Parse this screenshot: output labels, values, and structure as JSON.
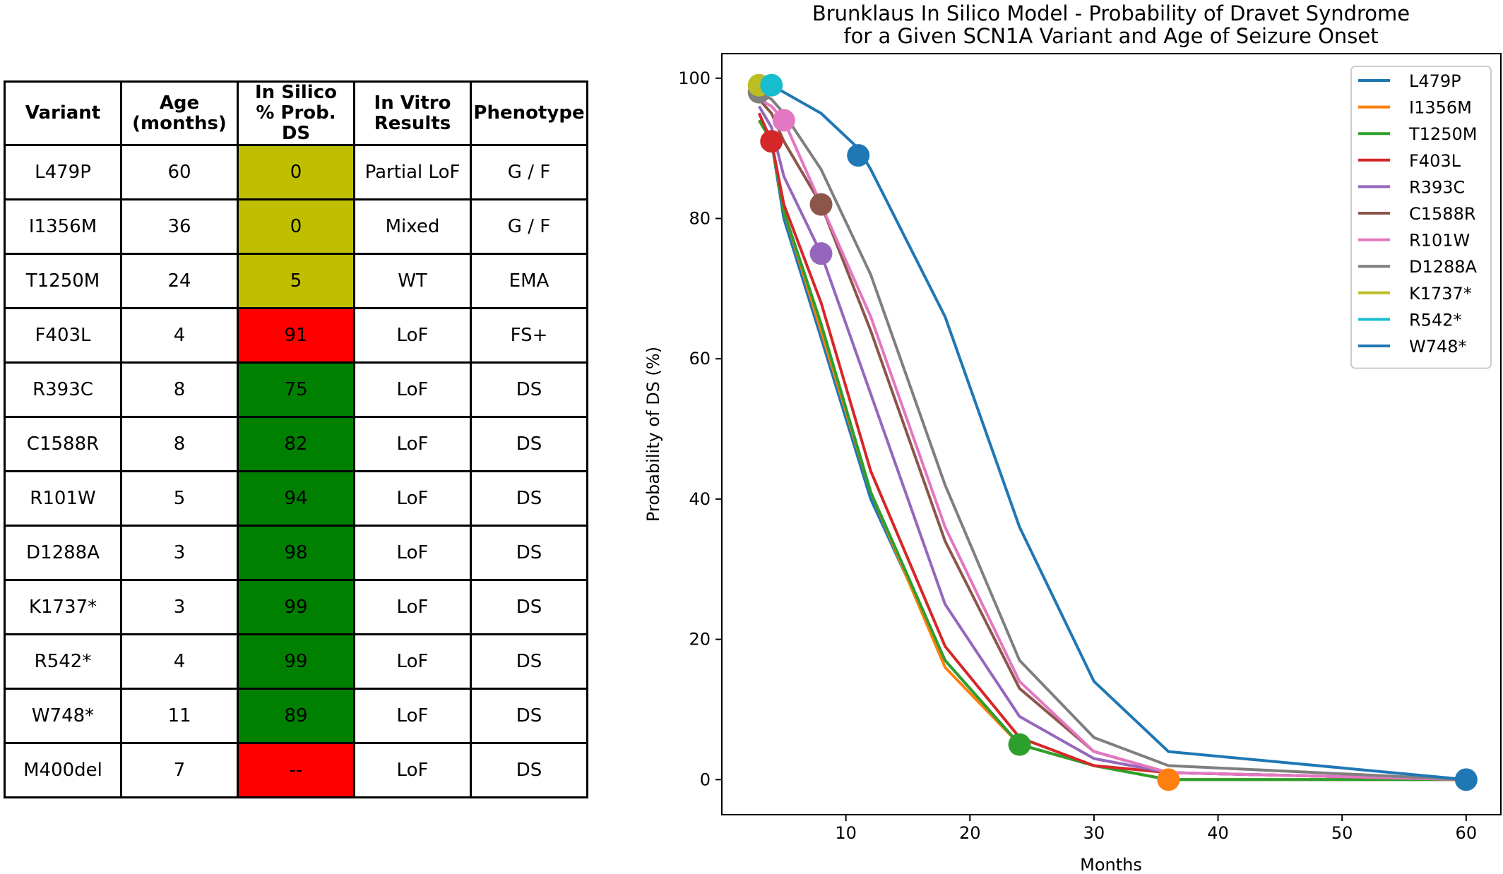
{
  "table": {
    "headers": [
      "Variant",
      "Age\n(months)",
      "In Silico\n% Prob. DS",
      "In Vitro\nResults",
      "Phenotype"
    ],
    "rows": [
      {
        "variant": "L479P",
        "age": "60",
        "prob": "0",
        "invitro": "Partial LoF",
        "phenotype": "G / F",
        "color": "#bfbf00"
      },
      {
        "variant": "I1356M",
        "age": "36",
        "prob": "0",
        "invitro": "Mixed",
        "phenotype": "G / F",
        "color": "#bfbf00"
      },
      {
        "variant": "T1250M",
        "age": "24",
        "prob": "5",
        "invitro": "WT",
        "phenotype": "EMA",
        "color": "#bfbf00"
      },
      {
        "variant": "F403L",
        "age": "4",
        "prob": "91",
        "invitro": "LoF",
        "phenotype": "FS+",
        "color": "#ff0000"
      },
      {
        "variant": "R393C",
        "age": "8",
        "prob": "75",
        "invitro": "LoF",
        "phenotype": "DS",
        "color": "#008000"
      },
      {
        "variant": "C1588R",
        "age": "8",
        "prob": "82",
        "invitro": "LoF",
        "phenotype": "DS",
        "color": "#008000"
      },
      {
        "variant": "R101W",
        "age": "5",
        "prob": "94",
        "invitro": "LoF",
        "phenotype": "DS",
        "color": "#008000"
      },
      {
        "variant": "D1288A",
        "age": "3",
        "prob": "98",
        "invitro": "LoF",
        "phenotype": "DS",
        "color": "#008000"
      },
      {
        "variant": "K1737*",
        "age": "3",
        "prob": "99",
        "invitro": "LoF",
        "phenotype": "DS",
        "color": "#008000"
      },
      {
        "variant": "R542*",
        "age": "4",
        "prob": "99",
        "invitro": "LoF",
        "phenotype": "DS",
        "color": "#008000"
      },
      {
        "variant": "W748*",
        "age": "11",
        "prob": "89",
        "invitro": "LoF",
        "phenotype": "DS",
        "color": "#008000"
      },
      {
        "variant": "M400del",
        "age": "7",
        "prob": "--",
        "invitro": "LoF",
        "phenotype": "DS",
        "color": "#ff0000"
      }
    ]
  },
  "chart_data": {
    "type": "line",
    "title": "Brunklaus In Silico Model - Probability of Dravet Syndrome\nfor a Given SCN1A Variant and Age of Seizure Onset",
    "xlabel": "Months",
    "ylabel": "Probability of DS (%)",
    "xlim": [
      0,
      62.8
    ],
    "ylim": [
      -5,
      103.5
    ],
    "xticks": [
      10,
      20,
      30,
      40,
      50,
      60
    ],
    "yticks": [
      0,
      20,
      40,
      60,
      80,
      100
    ],
    "grid": false,
    "legend_position": "top-right",
    "series": [
      {
        "name": "L479P",
        "color": "#1f77b4",
        "x": [
          3,
          4,
          5,
          8,
          12,
          18,
          24,
          30,
          36,
          60
        ],
        "y": [
          95,
          91,
          80,
          63,
          40,
          17,
          5,
          2,
          0,
          0
        ],
        "marker": {
          "x": 60,
          "y": 0
        }
      },
      {
        "name": "I1356M",
        "color": "#ff7f0e",
        "x": [
          3,
          4,
          5,
          8,
          12,
          18,
          24,
          30,
          36,
          60
        ],
        "y": [
          94,
          91,
          81,
          64,
          41,
          16,
          5,
          2,
          0,
          0
        ],
        "marker": {
          "x": 36,
          "y": 0
        }
      },
      {
        "name": "T1250M",
        "color": "#2ca02c",
        "x": [
          3,
          4,
          5,
          8,
          12,
          18,
          24,
          30,
          36,
          60
        ],
        "y": [
          94,
          91,
          81,
          65,
          41,
          17,
          5,
          2,
          0,
          0
        ],
        "marker": {
          "x": 24,
          "y": 5
        }
      },
      {
        "name": "F403L",
        "color": "#d62728",
        "x": [
          3,
          4,
          5,
          8,
          12,
          18,
          24,
          30,
          36,
          60
        ],
        "y": [
          95,
          91,
          82,
          68,
          44,
          19,
          6,
          2,
          1,
          0
        ],
        "marker": {
          "x": 4,
          "y": 91
        }
      },
      {
        "name": "R393C",
        "color": "#9467bd",
        "x": [
          3,
          4,
          5,
          8,
          12,
          18,
          24,
          30,
          36,
          60
        ],
        "y": [
          96,
          93,
          86,
          75,
          55,
          25,
          9,
          3,
          1,
          0
        ],
        "marker": {
          "x": 8,
          "y": 75
        }
      },
      {
        "name": "C1588R",
        "color": "#8c564b",
        "x": [
          3,
          4,
          5,
          8,
          12,
          18,
          24,
          30,
          36,
          60
        ],
        "y": [
          97,
          95,
          91,
          82,
          64,
          34,
          13,
          4,
          1,
          0
        ],
        "marker": {
          "x": 8,
          "y": 82
        }
      },
      {
        "name": "R101W",
        "color": "#e377c2",
        "x": [
          3,
          4,
          5,
          8,
          12,
          18,
          24,
          30,
          36,
          60
        ],
        "y": [
          97,
          96,
          94,
          82,
          66,
          36,
          14,
          4,
          1,
          0
        ],
        "marker": {
          "x": 5,
          "y": 94
        }
      },
      {
        "name": "D1288A",
        "color": "#7f7f7f",
        "x": [
          3,
          4,
          5,
          8,
          12,
          18,
          24,
          30,
          36,
          60
        ],
        "y": [
          98,
          97,
          95,
          87,
          72,
          42,
          17,
          6,
          2,
          0
        ],
        "marker": {
          "x": 3,
          "y": 98
        }
      },
      {
        "name": "K1737*",
        "color": "#bcbd22",
        "x": [
          3
        ],
        "y": [
          99
        ],
        "marker": {
          "x": 3,
          "y": 99
        }
      },
      {
        "name": "R542*",
        "color": "#17becf",
        "x": [
          4
        ],
        "y": [
          99
        ],
        "marker": {
          "x": 4,
          "y": 99
        }
      },
      {
        "name": "W748*",
        "color": "#1f77b4",
        "x": [
          3,
          4,
          8,
          11,
          12,
          18,
          24,
          30,
          36,
          60
        ],
        "y": [
          99,
          99,
          95,
          90,
          87,
          66,
          36,
          14,
          4,
          0
        ],
        "marker": {
          "x": 11,
          "y": 89
        }
      }
    ]
  }
}
